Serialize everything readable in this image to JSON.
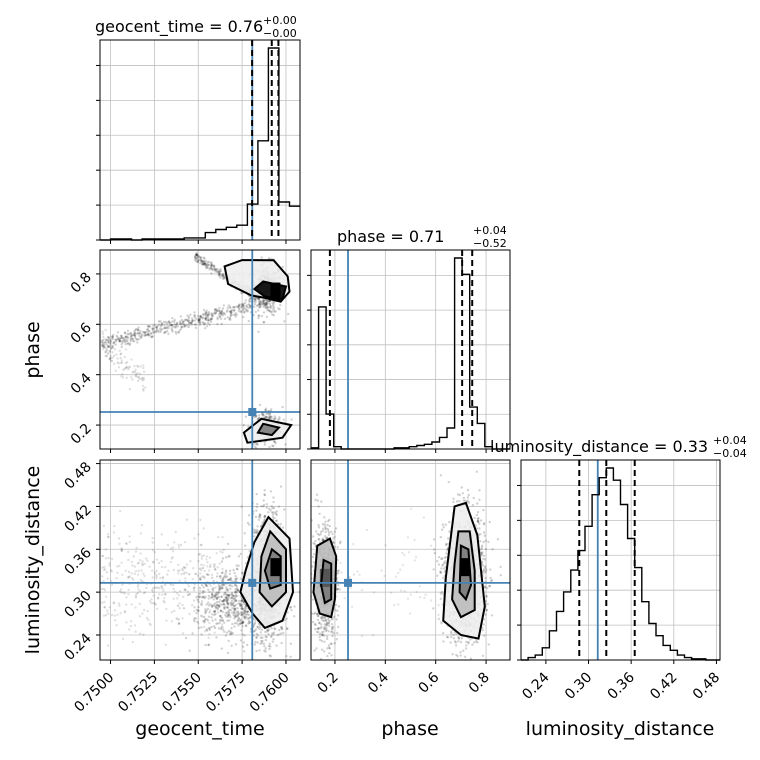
{
  "chart_data": {
    "type": "corner",
    "parameters": [
      "geocent_time",
      "phase",
      "luminosity_distance"
    ],
    "axis_labels": {
      "geocent_time": "geocent_time",
      "phase": "phase",
      "luminosity_distance": "luminosity_distance"
    },
    "ranges": {
      "geocent_time": [
        0.7494,
        0.7608
      ],
      "phase": [
        0.105,
        0.895
      ],
      "luminosity_distance": [
        0.205,
        0.485
      ]
    },
    "ticks": {
      "geocent_time": [
        0.75,
        0.7525,
        0.755,
        0.7575,
        0.76
      ],
      "phase": [
        0.2,
        0.4,
        0.6,
        0.8
      ],
      "luminosity_distance": [
        0.24,
        0.3,
        0.36,
        0.42,
        0.48
      ]
    },
    "tick_labels": {
      "geocent_time": [
        "0.7500",
        "0.7525",
        "0.7550",
        "0.7575",
        "0.7600"
      ],
      "phase": [
        "0.2",
        "0.4",
        "0.6",
        "0.8"
      ],
      "luminosity_distance": [
        "0.24",
        "0.30",
        "0.36",
        "0.42",
        "0.48"
      ]
    },
    "titles": {
      "geocent_time": {
        "name": "geocent_time",
        "median": "0.76",
        "plus": "+0.00",
        "minus": "−0.00"
      },
      "phase": {
        "name": "phase",
        "median": "0.71",
        "plus": "+0.04",
        "minus": "−0.52"
      },
      "luminosity_distance": {
        "name": "luminosity_distance",
        "median": "0.33",
        "plus": "+0.04",
        "minus": "−0.04"
      }
    },
    "truths": {
      "geocent_time": 0.75808,
      "phase": 0.252,
      "luminosity_distance": 0.313
    },
    "quantiles": {
      "geocent_time": [
        0.75807,
        0.75919,
        0.75957
      ],
      "phase": [
        0.18,
        0.705,
        0.745
      ],
      "luminosity_distance": [
        0.287,
        0.325,
        0.365
      ]
    },
    "histograms": {
      "geocent_time": {
        "edges": [
          0.7494,
          0.75,
          0.7506,
          0.7512,
          0.7518,
          0.7524,
          0.753,
          0.7536,
          0.7542,
          0.7548,
          0.7554,
          0.756,
          0.7566,
          0.7572,
          0.7578,
          0.7584,
          0.759,
          0.7596,
          0.7602,
          0.7608
        ],
        "counts": [
          0,
          0.005,
          0.005,
          0,
          0.005,
          0.005,
          0.005,
          0.005,
          0.01,
          0.01,
          0.035,
          0.05,
          0.06,
          0.07,
          0.17,
          0.47,
          0.91,
          0.18,
          0.16
        ]
      },
      "phase": {
        "edges": [
          0.105,
          0.135,
          0.165,
          0.195,
          0.225,
          0.255,
          0.285,
          0.315,
          0.345,
          0.375,
          0.405,
          0.435,
          0.465,
          0.495,
          0.525,
          0.555,
          0.585,
          0.615,
          0.645,
          0.675,
          0.705,
          0.735,
          0.765,
          0.795,
          0.825,
          0.855,
          0.895
        ],
        "counts": [
          0.005,
          0.61,
          0.15,
          0.01,
          0,
          0,
          0,
          0,
          0,
          0,
          0,
          0.005,
          0.005,
          0.01,
          0.015,
          0.02,
          0.03,
          0.05,
          0.09,
          0.82,
          0.75,
          0.18,
          0.11,
          0.01,
          0,
          0
        ]
      },
      "luminosity_distance": {
        "edges": [
          0.205,
          0.215,
          0.225,
          0.235,
          0.245,
          0.255,
          0.265,
          0.275,
          0.285,
          0.295,
          0.305,
          0.315,
          0.325,
          0.335,
          0.345,
          0.355,
          0.365,
          0.375,
          0.385,
          0.395,
          0.405,
          0.415,
          0.425,
          0.435,
          0.445,
          0.455,
          0.465,
          0.475,
          0.485
        ],
        "counts": [
          0,
          0.01,
          0.02,
          0.05,
          0.12,
          0.2,
          0.28,
          0.37,
          0.45,
          0.55,
          0.68,
          0.75,
          0.79,
          0.74,
          0.64,
          0.5,
          0.38,
          0.24,
          0.15,
          0.1,
          0.06,
          0.04,
          0.02,
          0.01,
          0.005,
          0.005,
          0,
          0
        ]
      }
    },
    "contours": {
      "phase_vs_geocent_time": [
        [
          [
            0.7593,
            0.854
          ],
          [
            0.7601,
            0.79
          ],
          [
            0.7602,
            0.73
          ],
          [
            0.7597,
            0.69
          ],
          [
            0.7588,
            0.705
          ],
          [
            0.758,
            0.715
          ],
          [
            0.7567,
            0.76
          ],
          [
            0.7565,
            0.83
          ],
          [
            0.7575,
            0.855
          ],
          [
            0.7593,
            0.854
          ]
        ],
        [
          [
            0.7587,
            0.77
          ],
          [
            0.76,
            0.75
          ],
          [
            0.7598,
            0.7
          ],
          [
            0.7588,
            0.71
          ],
          [
            0.7582,
            0.74
          ],
          [
            0.7587,
            0.77
          ]
        ],
        [
          [
            0.7586,
            0.225
          ],
          [
            0.7603,
            0.2
          ],
          [
            0.7598,
            0.15
          ],
          [
            0.7578,
            0.13
          ],
          [
            0.7576,
            0.17
          ],
          [
            0.7586,
            0.225
          ]
        ],
        [
          [
            0.7587,
            0.205
          ],
          [
            0.7596,
            0.19
          ],
          [
            0.7592,
            0.16
          ],
          [
            0.7584,
            0.17
          ],
          [
            0.7587,
            0.205
          ]
        ]
      ],
      "luminosity_distance_vs_geocent_time": [
        [
          [
            0.759,
            0.405
          ],
          [
            0.7602,
            0.375
          ],
          [
            0.7604,
            0.3
          ],
          [
            0.7598,
            0.26
          ],
          [
            0.7588,
            0.25
          ],
          [
            0.7581,
            0.27
          ],
          [
            0.7574,
            0.3
          ],
          [
            0.7577,
            0.33
          ],
          [
            0.7582,
            0.37
          ],
          [
            0.759,
            0.405
          ]
        ],
        [
          [
            0.7591,
            0.385
          ],
          [
            0.76,
            0.36
          ],
          [
            0.76,
            0.3
          ],
          [
            0.7592,
            0.28
          ],
          [
            0.7585,
            0.3
          ],
          [
            0.7586,
            0.35
          ],
          [
            0.7591,
            0.385
          ]
        ],
        [
          [
            0.7592,
            0.36
          ],
          [
            0.7597,
            0.35
          ],
          [
            0.7597,
            0.31
          ],
          [
            0.7591,
            0.305
          ],
          [
            0.7588,
            0.33
          ],
          [
            0.7592,
            0.36
          ]
        ]
      ],
      "luminosity_distance_vs_phase": [
        [
          [
            0.13,
            0.365
          ],
          [
            0.18,
            0.375
          ],
          [
            0.205,
            0.35
          ],
          [
            0.2,
            0.29
          ],
          [
            0.185,
            0.265
          ],
          [
            0.14,
            0.27
          ],
          [
            0.115,
            0.3
          ],
          [
            0.13,
            0.365
          ]
        ],
        [
          [
            0.155,
            0.345
          ],
          [
            0.185,
            0.34
          ],
          [
            0.185,
            0.29
          ],
          [
            0.16,
            0.285
          ],
          [
            0.145,
            0.31
          ],
          [
            0.155,
            0.345
          ]
        ],
        [
          [
            0.675,
            0.42
          ],
          [
            0.72,
            0.425
          ],
          [
            0.765,
            0.38
          ],
          [
            0.795,
            0.28
          ],
          [
            0.77,
            0.235
          ],
          [
            0.7,
            0.24
          ],
          [
            0.63,
            0.26
          ],
          [
            0.64,
            0.32
          ],
          [
            0.675,
            0.42
          ]
        ],
        [
          [
            0.69,
            0.385
          ],
          [
            0.735,
            0.385
          ],
          [
            0.755,
            0.33
          ],
          [
            0.755,
            0.275
          ],
          [
            0.7,
            0.265
          ],
          [
            0.665,
            0.29
          ],
          [
            0.675,
            0.34
          ],
          [
            0.69,
            0.385
          ]
        ],
        [
          [
            0.7,
            0.365
          ],
          [
            0.73,
            0.36
          ],
          [
            0.74,
            0.31
          ],
          [
            0.72,
            0.29
          ],
          [
            0.695,
            0.3
          ],
          [
            0.7,
            0.365
          ]
        ]
      ]
    },
    "scatter": {
      "phase_vs_geocent_time": [
        {
          "x_mean": 0.7589,
          "x_sd": 0.00045,
          "y_mean": 0.74,
          "y_sd": 0.05,
          "n": 500,
          "alpha": 0.18
        },
        {
          "x_mean": 0.7589,
          "x_sd": 0.00045,
          "y_mean": 0.19,
          "y_sd": 0.04,
          "n": 250,
          "alpha": 0.18
        },
        {
          "x_from": 0.7495,
          "x_to": 0.758,
          "y_from": 0.52,
          "y_to": 0.67,
          "y_sd": 0.015,
          "n": 450,
          "alpha": 0.18
        },
        {
          "x_from": 0.7495,
          "x_to": 0.752,
          "y_from": 0.52,
          "y_to": 0.38,
          "y_sd": 0.03,
          "n": 90,
          "alpha": 0.12
        },
        {
          "x_from": 0.7548,
          "x_to": 0.7585,
          "y_from": 0.87,
          "y_to": 0.7,
          "y_sd": 0.01,
          "n": 220,
          "alpha": 0.18
        }
      ],
      "luminosity_distance_vs_geocent_time": [
        {
          "x_mean": 0.759,
          "x_sd": 0.00045,
          "y_mean": 0.325,
          "y_sd": 0.045,
          "n": 1400,
          "alpha": 0.18
        },
        {
          "x_mean": 0.7572,
          "x_sd": 0.0012,
          "y_mean": 0.285,
          "y_sd": 0.025,
          "n": 700,
          "alpha": 0.18
        },
        {
          "x_from": 0.7495,
          "x_to": 0.7565,
          "y_mean": 0.315,
          "y_sd": 0.035,
          "n": 380,
          "alpha": 0.12
        }
      ],
      "luminosity_distance_vs_phase": [
        {
          "x_mean": 0.16,
          "x_sd": 0.025,
          "y_mean": 0.315,
          "y_sd": 0.04,
          "n": 700,
          "alpha": 0.18
        },
        {
          "x_mean": 0.715,
          "x_sd": 0.04,
          "y_mean": 0.32,
          "y_sd": 0.045,
          "n": 1400,
          "alpha": 0.18
        },
        {
          "x_from": 0.2,
          "x_to": 0.65,
          "y_mean": 0.32,
          "y_sd": 0.04,
          "n": 60,
          "alpha": 0.1
        }
      ]
    },
    "colors": {
      "truth": "#4682b4",
      "contour": "#000000",
      "grid": "#c0c0c0",
      "points": "#000000",
      "fill_levels": [
        "#ffffff",
        "#eeeeee",
        "#bdbdbd",
        "#7a7a7a",
        "#000000"
      ]
    },
    "grid": true
  }
}
